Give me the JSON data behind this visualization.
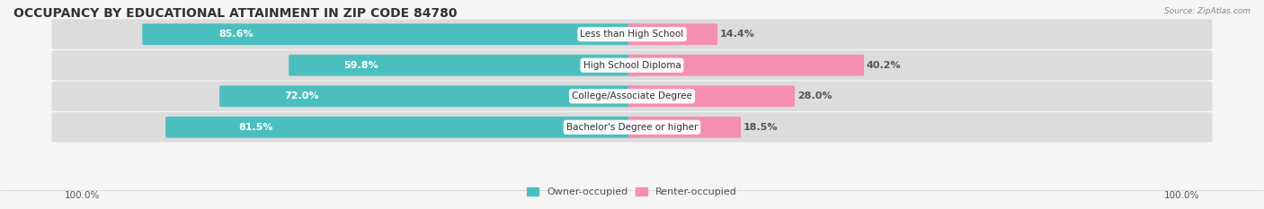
{
  "title": "OCCUPANCY BY EDUCATIONAL ATTAINMENT IN ZIP CODE 84780",
  "source": "Source: ZipAtlas.com",
  "categories": [
    "Less than High School",
    "High School Diploma",
    "College/Associate Degree",
    "Bachelor's Degree or higher"
  ],
  "owner_pct": [
    85.6,
    59.8,
    72.0,
    81.5
  ],
  "renter_pct": [
    14.4,
    40.2,
    28.0,
    18.5
  ],
  "owner_color": "#4bbfbf",
  "renter_color": "#f48fb1",
  "bar_bg_color": "#e8e8e8",
  "owner_label_color": "#ffffff",
  "renter_label_color": "#555555",
  "row_bg_colors": [
    "#f0f0f0",
    "#e8e8e8"
  ],
  "title_fontsize": 10,
  "label_fontsize": 8,
  "tick_label_fontsize": 7.5,
  "legend_fontsize": 8,
  "x_left_label": "100.0%",
  "x_right_label": "100.0%"
}
